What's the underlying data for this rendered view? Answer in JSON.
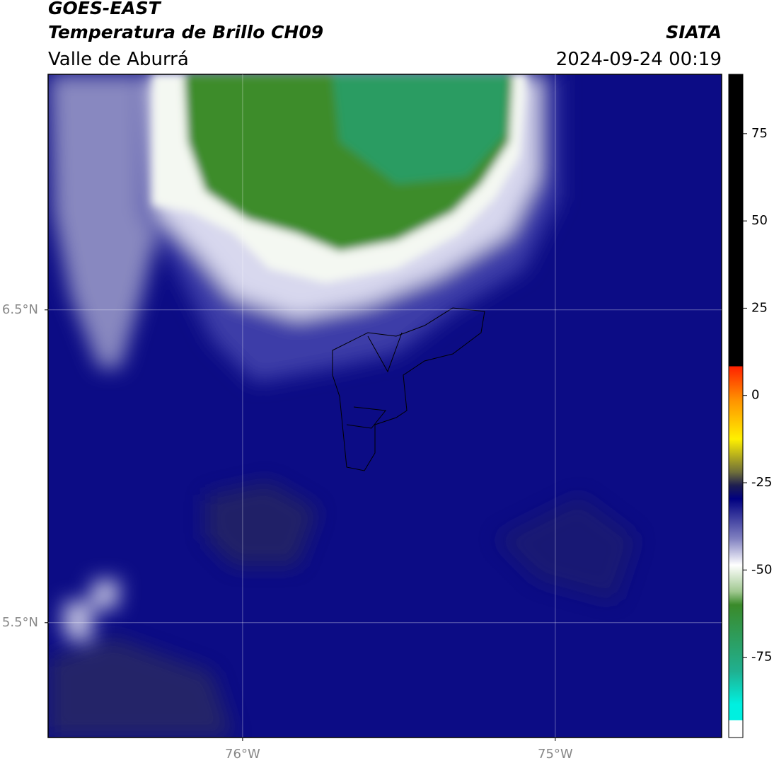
{
  "header": {
    "title": "GOES-EAST",
    "subtitle": "Temperatura de Brillo CH09",
    "region": "Valle de Aburrá",
    "source": "SIATA",
    "datetime": "2024-09-24 00:19"
  },
  "map": {
    "xlim": [
      -76.622,
      -74.468
    ],
    "ylim": [
      5.133,
      7.253
    ],
    "xticks": [
      {
        "value": -76,
        "label": "76°W"
      },
      {
        "value": -75,
        "label": "75°W"
      }
    ],
    "yticks": [
      {
        "value": 6.5,
        "label": "6.5°N"
      },
      {
        "value": 5.5,
        "label": "5.5°N"
      }
    ],
    "grid": true
  },
  "colorbar": {
    "lim": [
      -98,
      92
    ],
    "ticks": [
      75,
      50,
      25,
      0,
      -25,
      -50,
      -75
    ]
  }
}
